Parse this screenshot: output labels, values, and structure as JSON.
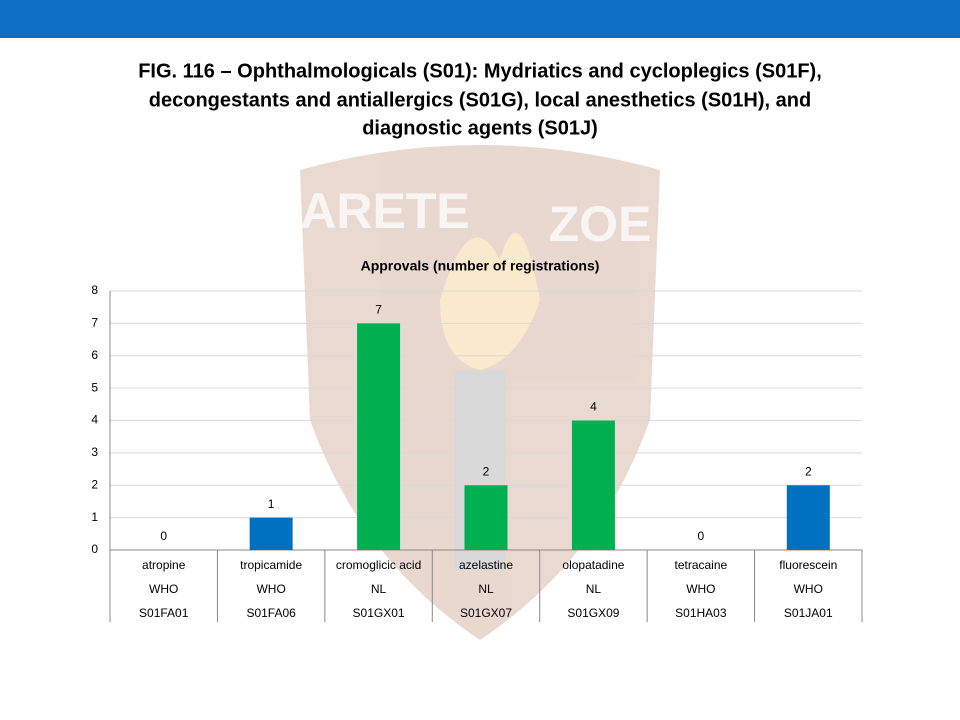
{
  "chart_data": {
    "type": "bar",
    "title_lines": [
      "FIG. 116 – Ophthalmologicals (S01): Mydriatics and cycloplegics (S01F),",
      "decongestants and antiallergics (S01G), local anesthetics (S01H), and",
      "diagnostic agents (S01J)"
    ],
    "watermark": [
      "ARETE",
      "ZOE"
    ],
    "subtitle": "Approvals (number of registrations)",
    "categories": [
      "atropine",
      "tropicamide",
      "cromoglicic acid",
      "azelastine",
      "olopatadine",
      "tetracaine",
      "fluorescein"
    ],
    "sources": [
      "WHO",
      "WHO",
      "NL",
      "NL",
      "NL",
      "WHO",
      "WHO"
    ],
    "codes": [
      "S01FA01",
      "S01FA06",
      "S01GX01",
      "S01GX07",
      "S01GX09",
      "S01HA03",
      "S01JA01"
    ],
    "values": [
      0,
      1,
      7,
      2,
      4,
      0,
      2
    ],
    "colors": [
      "#0070c0",
      "#0070c0",
      "#00b050",
      "#00b050",
      "#00b050",
      "#0070c0",
      "#0070c0"
    ],
    "ylim": [
      0,
      8
    ],
    "yticks": [
      0,
      1,
      2,
      3,
      4,
      5,
      6,
      7,
      8
    ],
    "grid": true
  }
}
